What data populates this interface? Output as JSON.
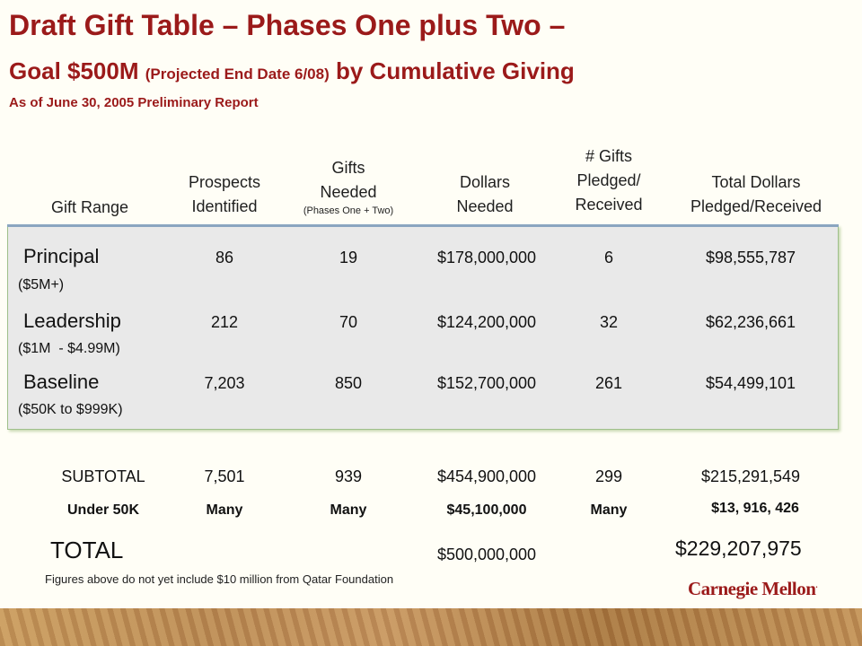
{
  "title": {
    "line1": "Draft Gift Table – Phases One plus Two –",
    "line2_main": "Goal $500M ",
    "line2_paren": "(Projected End Date 6/08)",
    "line2_end": " by Cumulative Giving",
    "asof": "As of June 30, 2005 Preliminary Report"
  },
  "headers": {
    "gift_range": "Gift Range",
    "prospects": [
      "Prospects",
      "Identified"
    ],
    "gifts_needed": [
      "Gifts",
      "Needed"
    ],
    "gifts_needed_note": "(Phases One + Two)",
    "dollars_needed": [
      "Dollars",
      "Needed"
    ],
    "gifts_pledged": [
      "# Gifts",
      "Pledged/",
      "Received"
    ],
    "total_dollars": [
      "Total Dollars",
      "Pledged/Received"
    ]
  },
  "rows": [
    {
      "label": "Principal",
      "sub": "($5M+)",
      "prospects": "86",
      "gifts_needed": "19",
      "dollars_needed": "$178,000,000",
      "gifts_pledged": "6",
      "total": "$98,555,787"
    },
    {
      "label": "Leadership",
      "sub": "($1M  - $4.99M)",
      "prospects": "212",
      "gifts_needed": "70",
      "dollars_needed": "$124,200,000",
      "gifts_pledged": "32",
      "total": "$62,236,661"
    },
    {
      "label": "Baseline",
      "sub": "($50K to $999K)",
      "prospects": "7,203",
      "gifts_needed": "850",
      "dollars_needed": "$152,700,000",
      "gifts_pledged": "261",
      "total": "$54,499,101"
    }
  ],
  "subtotal": {
    "label": "SUBTOTAL",
    "prospects": "7,501",
    "gifts_needed": "939",
    "dollars_needed": "$454,900,000",
    "gifts_pledged": "299",
    "total": "$215,291,549"
  },
  "under50k": {
    "label": "Under 50K",
    "prospects": "Many",
    "gifts_needed": "Many",
    "dollars_needed": "$45,100,000",
    "gifts_pledged": "Many",
    "total": "$13, 916, 426"
  },
  "total": {
    "label": "TOTAL",
    "dollars_needed": "$500,000,000",
    "total": "$229,207,975"
  },
  "note": "Figures above do not yet include $10 million from Qatar Foundation",
  "logo": {
    "text": "Carnegie Mellon",
    "mark": "."
  },
  "colors": {
    "title": "#9b1a1a",
    "panel": "#e9e9e9",
    "panel_border": "#9fc08a"
  }
}
